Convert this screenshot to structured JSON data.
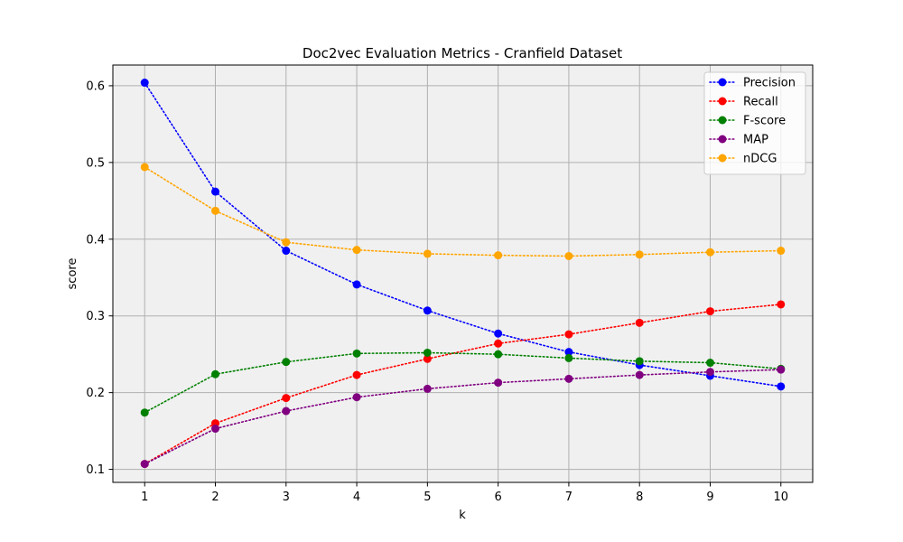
{
  "chart_data": {
    "type": "line",
    "title": "Doc2vec Evaluation Metrics - Cranfield Dataset",
    "xlabel": "k",
    "ylabel": "score",
    "x": [
      1,
      2,
      3,
      4,
      5,
      6,
      7,
      8,
      9,
      10
    ],
    "xlim": [
      0.55,
      10.45
    ],
    "ylim": [
      0.083,
      0.627
    ],
    "xticks": [
      1,
      2,
      3,
      4,
      5,
      6,
      7,
      8,
      9,
      10
    ],
    "yticks": [
      0.1,
      0.2,
      0.3,
      0.4,
      0.5,
      0.6
    ],
    "grid": true,
    "legend_position": "top-right",
    "line_style": "dotted",
    "marker": "circle",
    "plot_background": "#f0f0f0",
    "series": [
      {
        "name": "Precision",
        "color": "#0000ff",
        "values": [
          0.604,
          0.462,
          0.385,
          0.341,
          0.307,
          0.277,
          0.253,
          0.236,
          0.222,
          0.208
        ]
      },
      {
        "name": "Recall",
        "color": "#ff0000",
        "values": [
          0.107,
          0.16,
          0.193,
          0.223,
          0.244,
          0.264,
          0.276,
          0.291,
          0.306,
          0.315
        ]
      },
      {
        "name": "F-score",
        "color": "#008000",
        "values": [
          0.174,
          0.224,
          0.24,
          0.251,
          0.252,
          0.25,
          0.245,
          0.241,
          0.239,
          0.231
        ]
      },
      {
        "name": "MAP",
        "color": "#800080",
        "values": [
          0.107,
          0.153,
          0.176,
          0.194,
          0.205,
          0.213,
          0.218,
          0.223,
          0.227,
          0.23
        ]
      },
      {
        "name": "nDCG",
        "color": "#ffa500",
        "values": [
          0.494,
          0.437,
          0.396,
          0.386,
          0.381,
          0.379,
          0.378,
          0.38,
          0.383,
          0.385
        ]
      }
    ]
  }
}
